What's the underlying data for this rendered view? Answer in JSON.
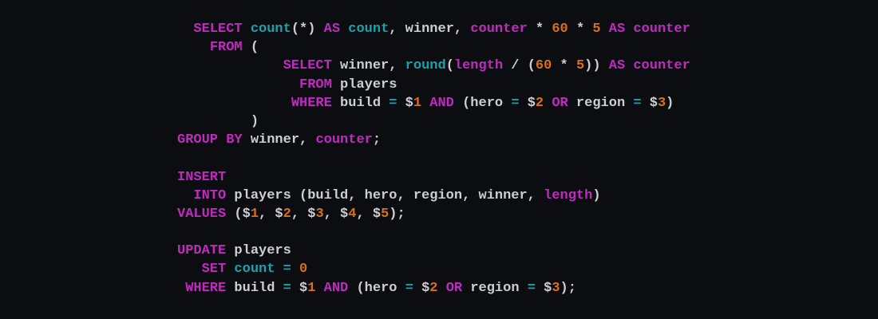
{
  "panel": {
    "background": "#0c0d10",
    "syntax_colors": {
      "keyword": "#be2cbe",
      "function": "#1aa2ab",
      "number": "#d4701e",
      "plain": "#ccced2"
    },
    "code_lines": [
      {
        "segments": [
          {
            "type": "plain",
            "text": "  "
          },
          {
            "type": "keyword",
            "text": "SELECT"
          },
          {
            "type": "plain",
            "text": " "
          },
          {
            "type": "function",
            "text": "count"
          },
          {
            "type": "plain",
            "text": "(*) "
          },
          {
            "type": "keyword",
            "text": "AS"
          },
          {
            "type": "plain",
            "text": " "
          },
          {
            "type": "function",
            "text": "count"
          },
          {
            "type": "plain",
            "text": ", winner, "
          },
          {
            "type": "keyword",
            "text": "counter"
          },
          {
            "type": "plain",
            "text": " * "
          },
          {
            "type": "number",
            "text": "60"
          },
          {
            "type": "plain",
            "text": " * "
          },
          {
            "type": "number",
            "text": "5"
          },
          {
            "type": "plain",
            "text": " "
          },
          {
            "type": "keyword",
            "text": "AS"
          },
          {
            "type": "plain",
            "text": " "
          },
          {
            "type": "keyword",
            "text": "counter"
          }
        ]
      },
      {
        "segments": [
          {
            "type": "plain",
            "text": "    "
          },
          {
            "type": "keyword",
            "text": "FROM"
          },
          {
            "type": "plain",
            "text": " ("
          }
        ]
      },
      {
        "segments": [
          {
            "type": "plain",
            "text": "             "
          },
          {
            "type": "keyword",
            "text": "SELECT"
          },
          {
            "type": "plain",
            "text": " winner, "
          },
          {
            "type": "function",
            "text": "round"
          },
          {
            "type": "plain",
            "text": "("
          },
          {
            "type": "keyword",
            "text": "length"
          },
          {
            "type": "plain",
            "text": " / ("
          },
          {
            "type": "number",
            "text": "60"
          },
          {
            "type": "plain",
            "text": " * "
          },
          {
            "type": "number",
            "text": "5"
          },
          {
            "type": "plain",
            "text": ")) "
          },
          {
            "type": "keyword",
            "text": "AS"
          },
          {
            "type": "plain",
            "text": " "
          },
          {
            "type": "keyword",
            "text": "counter"
          }
        ]
      },
      {
        "segments": [
          {
            "type": "plain",
            "text": "               "
          },
          {
            "type": "keyword",
            "text": "FROM"
          },
          {
            "type": "plain",
            "text": " players"
          }
        ]
      },
      {
        "segments": [
          {
            "type": "plain",
            "text": "              "
          },
          {
            "type": "keyword",
            "text": "WHERE"
          },
          {
            "type": "plain",
            "text": " build "
          },
          {
            "type": "function",
            "text": "="
          },
          {
            "type": "plain",
            "text": " $"
          },
          {
            "type": "number",
            "text": "1"
          },
          {
            "type": "plain",
            "text": " "
          },
          {
            "type": "keyword",
            "text": "AND"
          },
          {
            "type": "plain",
            "text": " (hero "
          },
          {
            "type": "function",
            "text": "="
          },
          {
            "type": "plain",
            "text": " $"
          },
          {
            "type": "number",
            "text": "2"
          },
          {
            "type": "plain",
            "text": " "
          },
          {
            "type": "keyword",
            "text": "OR"
          },
          {
            "type": "plain",
            "text": " region "
          },
          {
            "type": "function",
            "text": "="
          },
          {
            "type": "plain",
            "text": " $"
          },
          {
            "type": "number",
            "text": "3"
          },
          {
            "type": "plain",
            "text": ")"
          }
        ]
      },
      {
        "segments": [
          {
            "type": "plain",
            "text": "         )"
          }
        ]
      },
      {
        "segments": [
          {
            "type": "keyword",
            "text": "GROUP BY"
          },
          {
            "type": "plain",
            "text": " winner, "
          },
          {
            "type": "keyword",
            "text": "counter"
          },
          {
            "type": "plain",
            "text": ";"
          }
        ]
      },
      {
        "segments": []
      },
      {
        "segments": [
          {
            "type": "keyword",
            "text": "INSERT"
          }
        ]
      },
      {
        "segments": [
          {
            "type": "plain",
            "text": "  "
          },
          {
            "type": "keyword",
            "text": "INTO"
          },
          {
            "type": "plain",
            "text": " players (build, hero, region, winner, "
          },
          {
            "type": "keyword",
            "text": "length"
          },
          {
            "type": "plain",
            "text": ")"
          }
        ]
      },
      {
        "segments": [
          {
            "type": "keyword",
            "text": "VALUES"
          },
          {
            "type": "plain",
            "text": " ($"
          },
          {
            "type": "number",
            "text": "1"
          },
          {
            "type": "plain",
            "text": ", $"
          },
          {
            "type": "number",
            "text": "2"
          },
          {
            "type": "plain",
            "text": ", $"
          },
          {
            "type": "number",
            "text": "3"
          },
          {
            "type": "plain",
            "text": ", $"
          },
          {
            "type": "number",
            "text": "4"
          },
          {
            "type": "plain",
            "text": ", $"
          },
          {
            "type": "number",
            "text": "5"
          },
          {
            "type": "plain",
            "text": ");"
          }
        ]
      },
      {
        "segments": []
      },
      {
        "segments": [
          {
            "type": "keyword",
            "text": "UPDATE"
          },
          {
            "type": "plain",
            "text": " players"
          }
        ]
      },
      {
        "segments": [
          {
            "type": "plain",
            "text": "   "
          },
          {
            "type": "keyword",
            "text": "SET"
          },
          {
            "type": "plain",
            "text": " "
          },
          {
            "type": "function",
            "text": "count"
          },
          {
            "type": "plain",
            "text": " "
          },
          {
            "type": "function",
            "text": "="
          },
          {
            "type": "plain",
            "text": " "
          },
          {
            "type": "number",
            "text": "0"
          }
        ]
      },
      {
        "segments": [
          {
            "type": "plain",
            "text": " "
          },
          {
            "type": "keyword",
            "text": "WHERE"
          },
          {
            "type": "plain",
            "text": " build "
          },
          {
            "type": "function",
            "text": "="
          },
          {
            "type": "plain",
            "text": " $"
          },
          {
            "type": "number",
            "text": "1"
          },
          {
            "type": "plain",
            "text": " "
          },
          {
            "type": "keyword",
            "text": "AND"
          },
          {
            "type": "plain",
            "text": " (hero "
          },
          {
            "type": "function",
            "text": "="
          },
          {
            "type": "plain",
            "text": " $"
          },
          {
            "type": "number",
            "text": "2"
          },
          {
            "type": "plain",
            "text": " "
          },
          {
            "type": "keyword",
            "text": "OR"
          },
          {
            "type": "plain",
            "text": " region "
          },
          {
            "type": "function",
            "text": "="
          },
          {
            "type": "plain",
            "text": " $"
          },
          {
            "type": "number",
            "text": "3"
          },
          {
            "type": "plain",
            "text": ");"
          }
        ]
      }
    ]
  }
}
